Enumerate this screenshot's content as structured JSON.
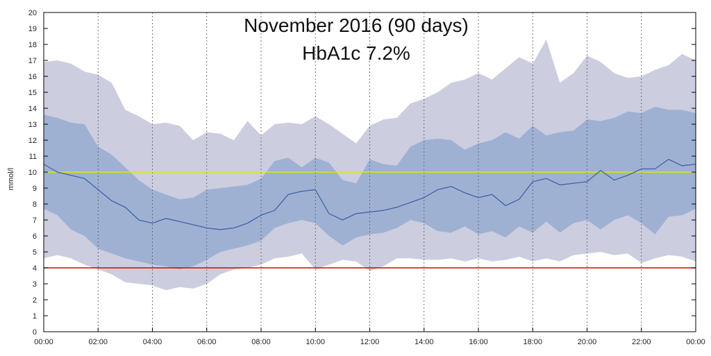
{
  "chart_data": {
    "type": "area",
    "title": "November 2016 (90 days)",
    "subtitle": "HbA1c 7.2%",
    "ylabel": "mmol/l",
    "xlabel": "",
    "xlim": [
      0,
      24
    ],
    "ylim": [
      0,
      20
    ],
    "grid": "vertical dashed every 2 hours",
    "x_ticks": [
      "00:00",
      "02:00",
      "04:00",
      "06:00",
      "08:00",
      "10:00",
      "12:00",
      "14:00",
      "16:00",
      "18:00",
      "20:00",
      "22:00",
      "00:00"
    ],
    "y_ticks": [
      0,
      1,
      2,
      3,
      4,
      5,
      6,
      7,
      8,
      9,
      10,
      11,
      12,
      13,
      14,
      15,
      16,
      17,
      18,
      19,
      20
    ],
    "reference_lines": [
      {
        "value": 10,
        "color": "#e6e600"
      },
      {
        "value": 4,
        "color": "#dd0000"
      }
    ],
    "colors": {
      "outer_band": "#cdcde0",
      "inner_band": "#9fb1d3",
      "median_line": "#3d64a3"
    },
    "hours": [
      0,
      0.5,
      1,
      1.5,
      2,
      2.5,
      3,
      3.5,
      4,
      4.5,
      5,
      5.5,
      6,
      6.5,
      7,
      7.5,
      8,
      8.5,
      9,
      9.5,
      10,
      10.5,
      11,
      11.5,
      12,
      12.5,
      13,
      13.5,
      14,
      14.5,
      15,
      15.5,
      16,
      16.5,
      17,
      17.5,
      18,
      18.5,
      19,
      19.5,
      20,
      20.5,
      21,
      21.5,
      22,
      22.5,
      23,
      23.5,
      24
    ],
    "outer_high": [
      16.9,
      17.0,
      16.8,
      16.3,
      16.1,
      15.6,
      13.9,
      13.5,
      13.0,
      13.1,
      12.9,
      12.0,
      12.5,
      12.4,
      12.0,
      13.2,
      12.3,
      13.0,
      13.1,
      13.0,
      13.5,
      13.0,
      12.4,
      11.8,
      12.9,
      13.3,
      13.4,
      14.3,
      14.6,
      15.0,
      15.6,
      15.8,
      16.2,
      15.8,
      16.5,
      17.2,
      16.8,
      18.3,
      15.6,
      16.2,
      17.3,
      16.9,
      16.2,
      15.9,
      16.0,
      16.4,
      16.7,
      17.4,
      17.0
    ],
    "inner_high": [
      13.6,
      13.4,
      13.1,
      13.0,
      11.6,
      11.1,
      10.3,
      9.5,
      8.9,
      8.6,
      8.3,
      8.4,
      8.9,
      9.0,
      9.1,
      9.2,
      9.6,
      10.7,
      10.9,
      10.3,
      10.9,
      10.6,
      9.5,
      9.3,
      10.8,
      10.5,
      10.4,
      11.6,
      12.0,
      12.1,
      12.0,
      11.4,
      11.8,
      12.0,
      12.5,
      12.1,
      12.9,
      12.3,
      12.5,
      12.6,
      13.3,
      13.2,
      13.4,
      13.8,
      13.7,
      14.1,
      13.9,
      13.9,
      13.7
    ],
    "median": [
      10.5,
      10.0,
      9.8,
      9.6,
      8.9,
      8.2,
      7.8,
      7.0,
      6.8,
      7.1,
      6.9,
      6.7,
      6.5,
      6.4,
      6.5,
      6.8,
      7.3,
      7.6,
      8.6,
      8.8,
      8.9,
      7.4,
      7.0,
      7.4,
      7.5,
      7.6,
      7.8,
      8.1,
      8.4,
      8.9,
      9.1,
      8.7,
      8.4,
      8.6,
      7.9,
      8.3,
      9.4,
      9.6,
      9.2,
      9.3,
      9.4,
      10.1,
      9.5,
      9.8,
      10.2,
      10.2,
      10.8,
      10.4,
      10.5
    ],
    "inner_low": [
      7.7,
      7.3,
      6.4,
      6.0,
      5.2,
      4.9,
      4.6,
      4.4,
      4.2,
      4.1,
      3.9,
      4.1,
      4.5,
      5.0,
      5.2,
      5.4,
      5.7,
      6.5,
      6.8,
      7.0,
      6.8,
      6.0,
      5.4,
      5.9,
      6.1,
      6.2,
      6.5,
      7.0,
      6.8,
      6.3,
      6.2,
      6.6,
      6.1,
      6.3,
      5.9,
      6.6,
      6.2,
      6.9,
      6.2,
      6.8,
      7.0,
      6.4,
      7.0,
      7.3,
      6.8,
      6.1,
      7.2,
      7.3,
      7.7
    ],
    "outer_low": [
      4.6,
      4.8,
      4.6,
      4.2,
      3.9,
      3.6,
      3.1,
      3.0,
      2.9,
      2.6,
      2.8,
      2.7,
      3.0,
      3.6,
      3.9,
      4.0,
      4.2,
      4.6,
      4.7,
      4.9,
      3.9,
      4.2,
      4.5,
      4.4,
      3.8,
      4.1,
      4.6,
      4.6,
      4.5,
      4.5,
      4.6,
      4.4,
      4.6,
      4.4,
      4.5,
      4.7,
      4.4,
      4.6,
      4.4,
      4.8,
      4.9,
      5.0,
      4.8,
      4.9,
      4.3,
      4.6,
      4.8,
      4.7,
      4.4
    ]
  }
}
